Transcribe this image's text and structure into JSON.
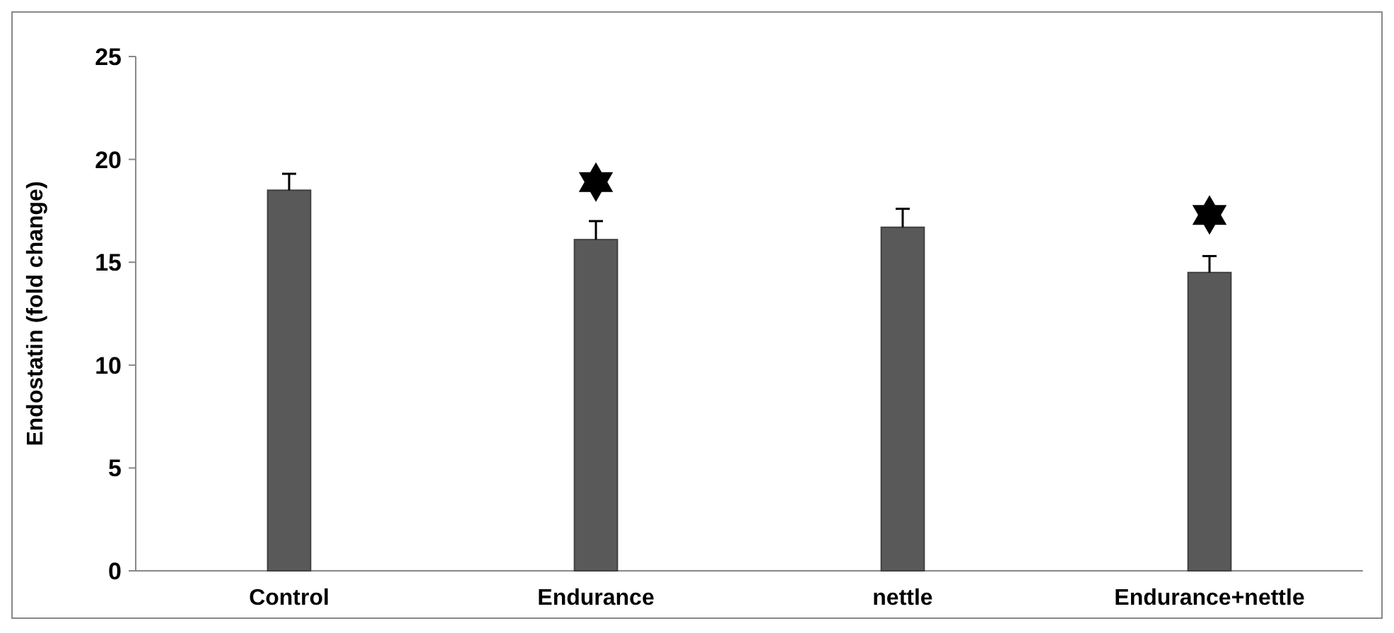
{
  "chart_data": {
    "type": "bar",
    "ylabel": "Endostatin (fold change)",
    "categories": [
      "Control",
      "Endurance",
      "nettle",
      "Endurance+nettle"
    ],
    "values": [
      18.5,
      16.1,
      16.7,
      14.5
    ],
    "color": "#595959",
    "errors": [
      [
        18.5,
        19.3
      ],
      [
        16.1,
        17.0
      ],
      [
        16.7,
        17.6
      ],
      [
        14.5,
        15.3
      ]
    ],
    "ylim": [
      0,
      25
    ],
    "yticks": [
      0,
      5,
      10,
      15,
      20,
      25
    ],
    "grid": false
  }
}
